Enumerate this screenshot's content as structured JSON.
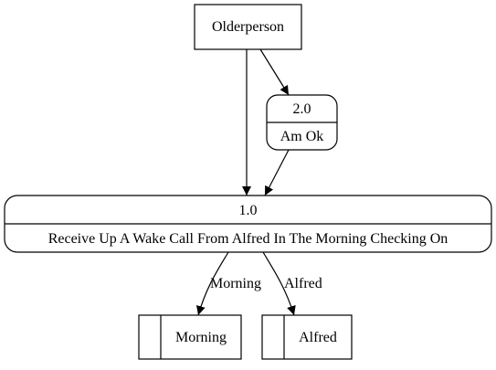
{
  "diagram": {
    "external_entity": {
      "label": "Olderperson"
    },
    "process_2": {
      "id": "2.0",
      "label": "Am Ok"
    },
    "process_1": {
      "id": "1.0",
      "label": "Receive Up A Wake Call From Alfred In The Morning Checking On"
    },
    "datastore_morning": {
      "label": "Morning"
    },
    "datastore_alfred": {
      "label": "Alfred"
    },
    "edges": {
      "to_morning_label": "Morning",
      "to_alfred_label": "Alfred"
    }
  }
}
